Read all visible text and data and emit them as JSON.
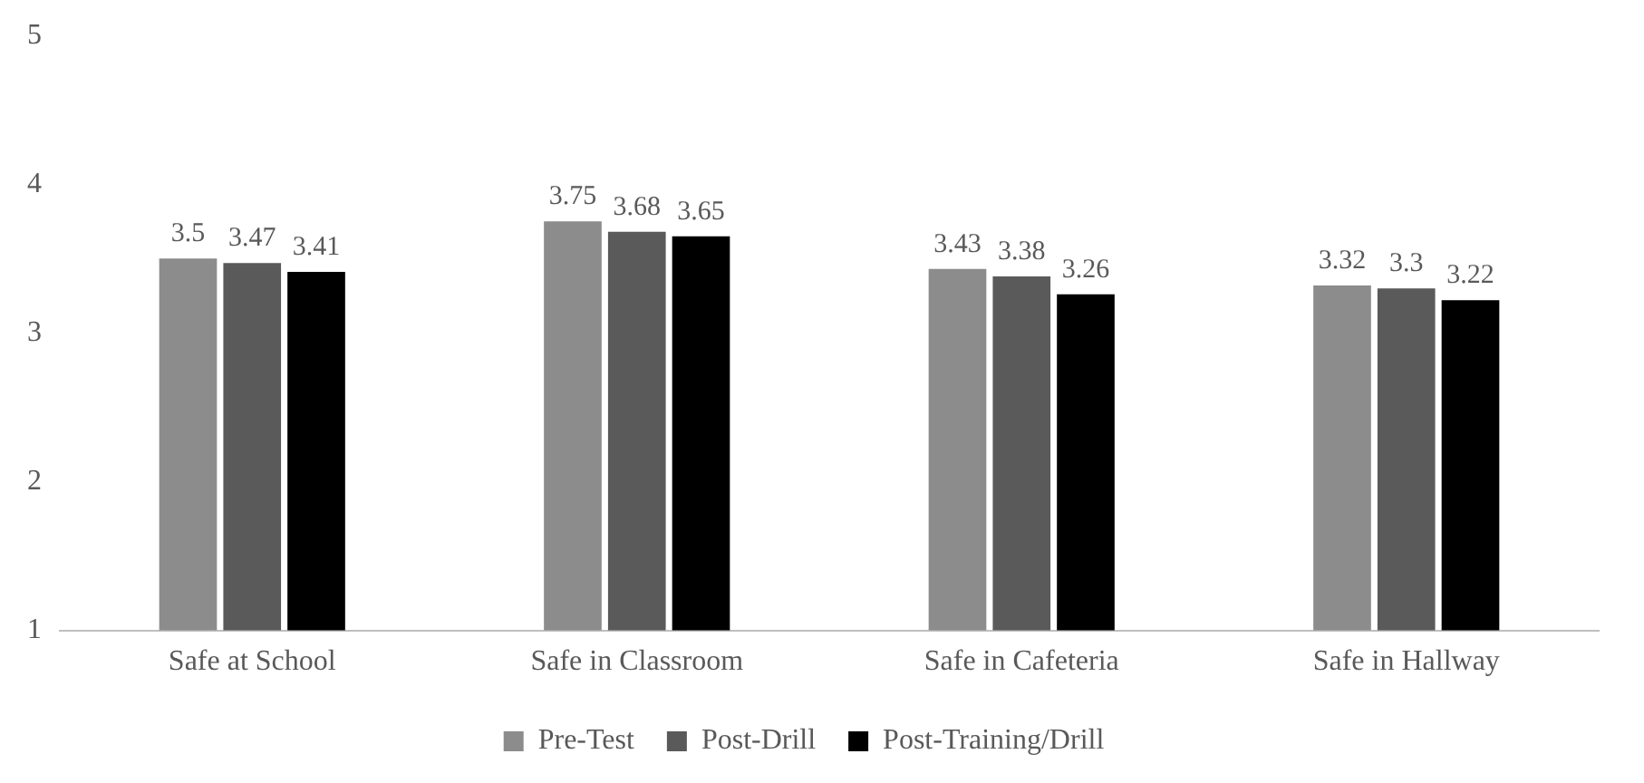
{
  "chart_data": {
    "type": "bar",
    "categories": [
      "Safe at School",
      "Safe in Classroom",
      "Safe in Cafeteria",
      "Safe in Hallway"
    ],
    "series": [
      {
        "name": "Pre-Test",
        "color": "#8c8c8c",
        "values": [
          3.5,
          3.75,
          3.43,
          3.32
        ]
      },
      {
        "name": "Post-Drill",
        "color": "#5a5a5a",
        "values": [
          3.47,
          3.68,
          3.38,
          3.3
        ]
      },
      {
        "name": "Post-Training/Drill",
        "color": "#000000",
        "values": [
          3.41,
          3.65,
          3.26,
          3.22
        ]
      }
    ],
    "ylim": [
      1,
      5
    ],
    "yticks": [
      1,
      2,
      3,
      4,
      5
    ],
    "legend": "bottom",
    "data_labels": true
  }
}
